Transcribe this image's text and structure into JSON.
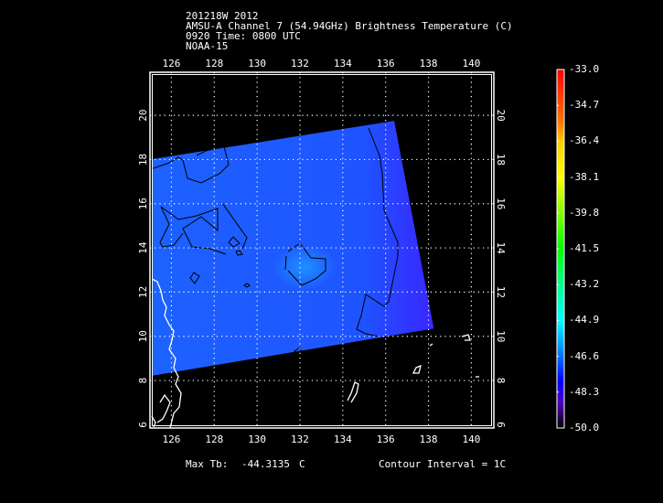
{
  "header": {
    "line1": "201218W 2012",
    "line2": "AMSU-A Channel 7 (54.94GHz) Brightness Temperature (C)",
    "line3": "0920 Time: 0800 UTC",
    "line4": "NOAA-15"
  },
  "map": {
    "lon_ticks": [
      "126",
      "128",
      "130",
      "132",
      "134",
      "136",
      "138",
      "140"
    ],
    "lat_ticks": [
      "6",
      "8",
      "10",
      "12",
      "14",
      "16",
      "18",
      "20"
    ],
    "lon_range": [
      125.0,
      141.05
    ],
    "lat_range": [
      5.85,
      21.95
    ],
    "swath_corners_lonlat": [
      [
        125.0,
        18.0
      ],
      [
        136.4,
        19.75
      ],
      [
        138.25,
        10.35
      ],
      [
        125.0,
        8.2
      ]
    ],
    "fill_color": "#1f5cff",
    "fill_color_edge": "#3a26ff",
    "grid_color": "#ffffff",
    "contour_color": "#000000",
    "coast_color": "#ffffff"
  },
  "colorbar": {
    "labels": [
      "-33.0",
      "-34.7",
      "-36.4",
      "-38.1",
      "-39.8",
      "-41.5",
      "-43.2",
      "-44.9",
      "-46.6",
      "-48.3",
      "-50.0"
    ],
    "min": -50.0,
    "max": -33.0
  },
  "footer": {
    "max_tb_label": "Max Tb:",
    "max_tb_value": "-44.3135",
    "max_tb_unit": "C",
    "contour_interval": "Contour Interval = 1C"
  }
}
